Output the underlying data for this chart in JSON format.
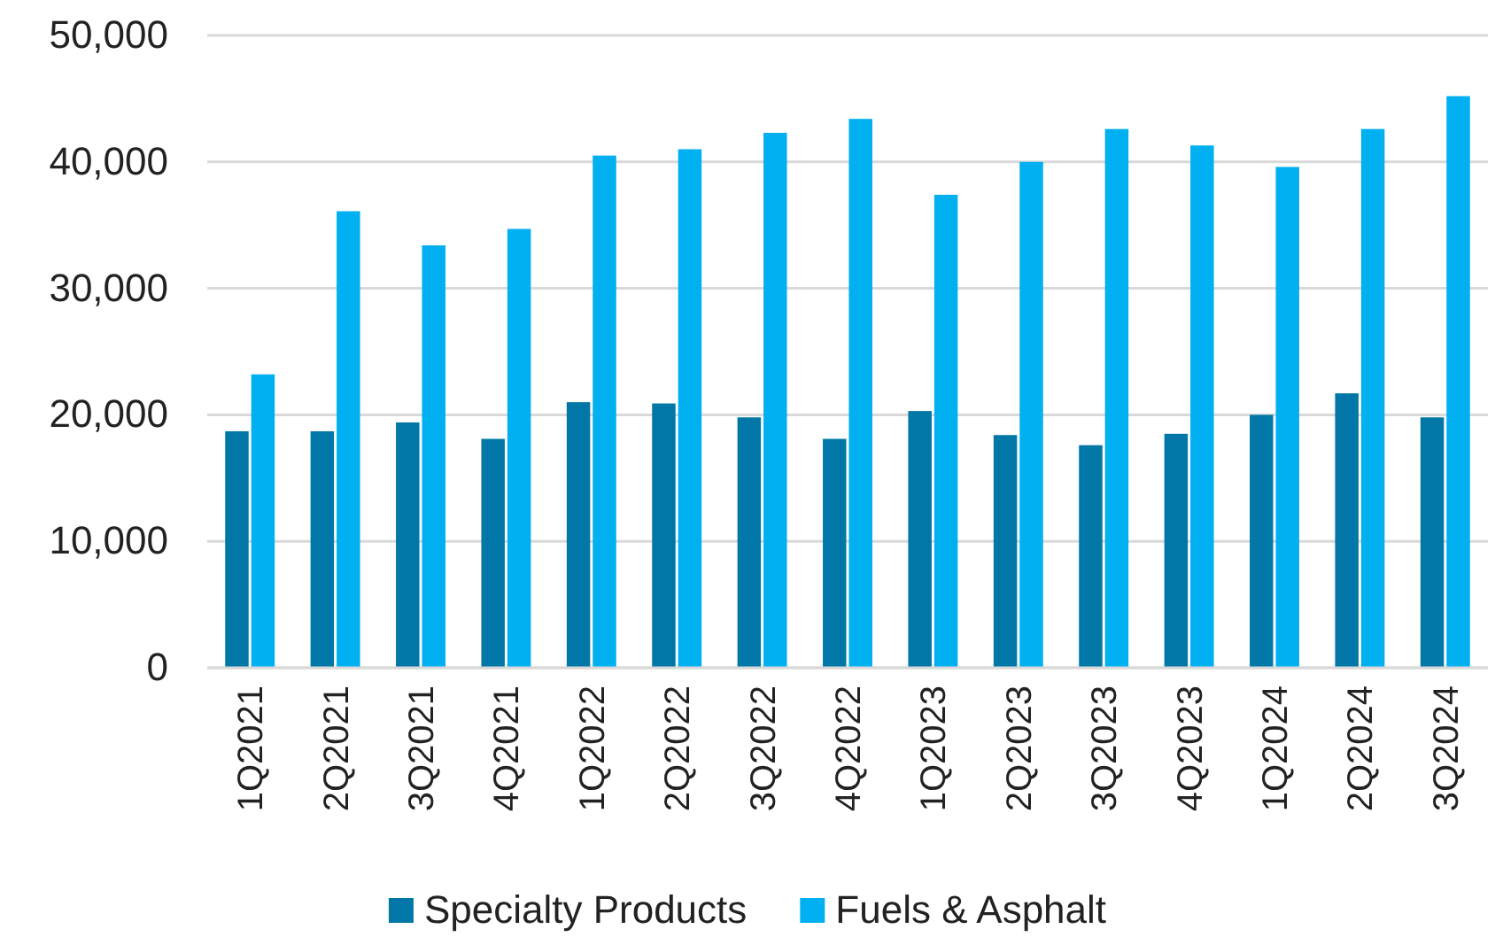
{
  "chart_data": {
    "type": "bar",
    "categories": [
      "1Q2021",
      "2Q2021",
      "3Q2021",
      "4Q2021",
      "1Q2022",
      "2Q2022",
      "3Q2022",
      "4Q2022",
      "1Q2023",
      "2Q2023",
      "3Q2023",
      "4Q2023",
      "1Q2024",
      "2Q2024",
      "3Q2024"
    ],
    "series": [
      {
        "name": "Specialty Products",
        "color": "#0077a6",
        "values": [
          18700,
          18700,
          19400,
          18100,
          21000,
          20900,
          19800,
          18100,
          20300,
          18400,
          17600,
          18500,
          20000,
          21700,
          19800
        ]
      },
      {
        "name": "Fuels & Asphalt",
        "color": "#00b0f0",
        "values": [
          23200,
          36100,
          33400,
          34700,
          40500,
          41000,
          42300,
          43400,
          37400,
          40000,
          42600,
          41300,
          39600,
          42600,
          45200
        ]
      }
    ],
    "ylim": [
      0,
      50000
    ],
    "yticks": [
      {
        "value": 0,
        "label": "0"
      },
      {
        "value": 10000,
        "label": "10,000"
      },
      {
        "value": 20000,
        "label": "20,000"
      },
      {
        "value": 30000,
        "label": "30,000"
      },
      {
        "value": 40000,
        "label": "40,000"
      },
      {
        "value": 50000,
        "label": "50,000"
      }
    ],
    "grid": "y",
    "legend": "bottom"
  }
}
